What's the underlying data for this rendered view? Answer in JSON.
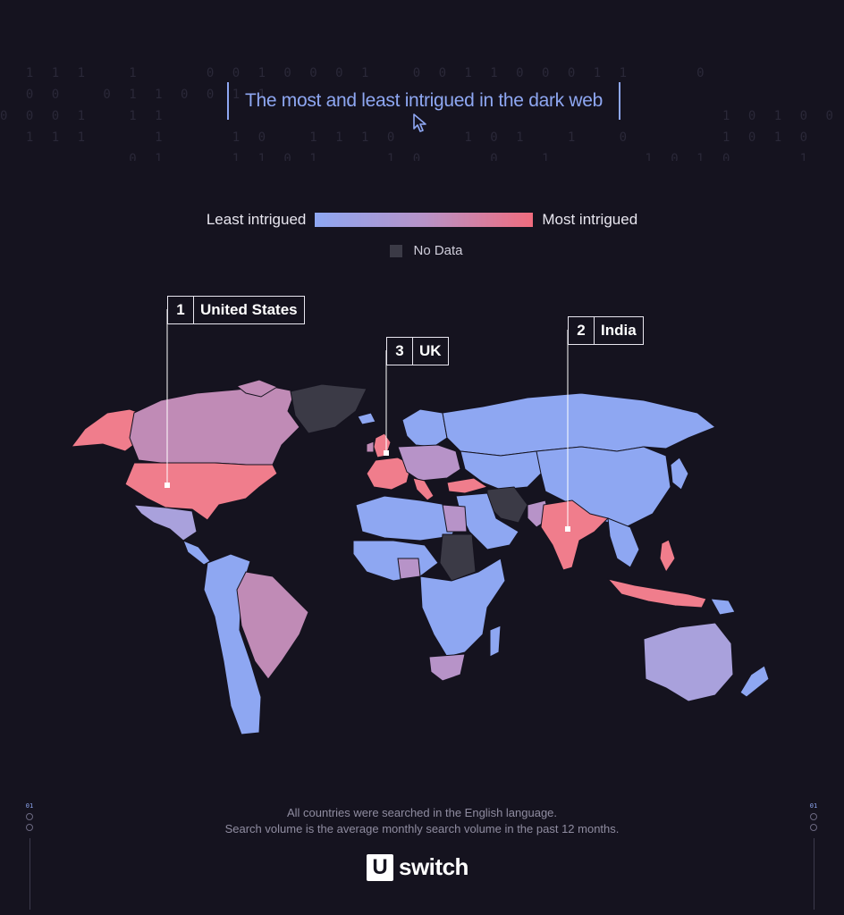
{
  "title": "The most and least intrigued in the dark web",
  "legend": {
    "least_label": "Least intrigued",
    "most_label": "Most intrigued",
    "no_data_label": "No Data",
    "scale_colors": [
      "#8ea7f2",
      "#b793c8",
      "#f06c7e"
    ],
    "no_data_color": "#3b3a46"
  },
  "callouts": [
    {
      "rank": "1",
      "country": "United States"
    },
    {
      "rank": "2",
      "country": "India"
    },
    {
      "rank": "3",
      "country": "UK"
    }
  ],
  "footnote": {
    "line1": "All countries were searched in the English language.",
    "line2": "Search volume is the average monthly search volume in the past 12 months."
  },
  "side_label": "01",
  "brand": {
    "mark": "U",
    "word": "switch"
  },
  "colors": {
    "background": "#15131f",
    "accent": "#8ea7f2",
    "most": "#f06c7e"
  }
}
